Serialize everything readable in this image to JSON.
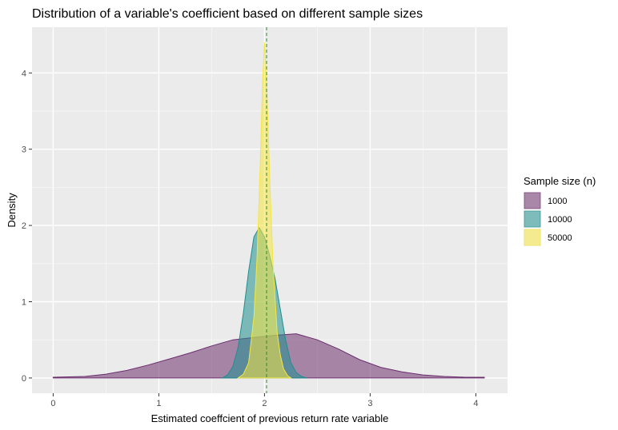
{
  "chart_data": {
    "type": "area",
    "title": "Distribution of a variable's coefficient  based on different sample sizes",
    "xlabel": "Estimated coeffcient of previous return rate variable",
    "ylabel": "Density",
    "xlim": [
      -0.2,
      4.3
    ],
    "ylim": [
      -0.2,
      4.6
    ],
    "x_ticks": [
      0,
      1,
      2,
      3,
      4
    ],
    "y_ticks": [
      0,
      1,
      2,
      3,
      4
    ],
    "grid": true,
    "vline_x": 2.02,
    "legend": {
      "title": "Sample size (n)",
      "placement": "right",
      "entries": [
        "1000",
        "10000",
        "50000"
      ]
    },
    "series": [
      {
        "name": "1000",
        "color": "#6b2f6e",
        "x": [
          0,
          0.3,
          0.5,
          0.7,
          0.9,
          1.1,
          1.3,
          1.5,
          1.7,
          1.9,
          2.1,
          2.3,
          2.5,
          2.7,
          2.9,
          3.1,
          3.3,
          3.5,
          3.7,
          3.9,
          4.08
        ],
        "y": [
          0.01,
          0.02,
          0.05,
          0.1,
          0.17,
          0.25,
          0.33,
          0.42,
          0.5,
          0.53,
          0.56,
          0.58,
          0.5,
          0.38,
          0.24,
          0.14,
          0.08,
          0.04,
          0.02,
          0.01,
          0.01
        ]
      },
      {
        "name": "10000",
        "color": "#1f8f8f",
        "x": [
          1.6,
          1.65,
          1.7,
          1.75,
          1.8,
          1.85,
          1.9,
          1.95,
          2.0,
          2.05,
          2.1,
          2.15,
          2.2,
          2.25,
          2.3,
          2.35,
          2.4
        ],
        "y": [
          0.0,
          0.04,
          0.15,
          0.4,
          0.85,
          1.4,
          1.85,
          1.97,
          1.85,
          1.6,
          1.3,
          0.9,
          0.5,
          0.2,
          0.07,
          0.02,
          0.0
        ]
      },
      {
        "name": "50000",
        "color": "#f5e642",
        "x": [
          1.75,
          1.8,
          1.85,
          1.9,
          1.93,
          1.96,
          1.98,
          2.0,
          2.02,
          2.05,
          2.08,
          2.12,
          2.15,
          2.18,
          2.22,
          2.25
        ],
        "y": [
          0.0,
          0.05,
          0.2,
          0.8,
          1.6,
          2.8,
          3.8,
          4.4,
          3.9,
          2.6,
          1.5,
          0.6,
          0.3,
          0.12,
          0.03,
          0.0
        ]
      }
    ]
  }
}
